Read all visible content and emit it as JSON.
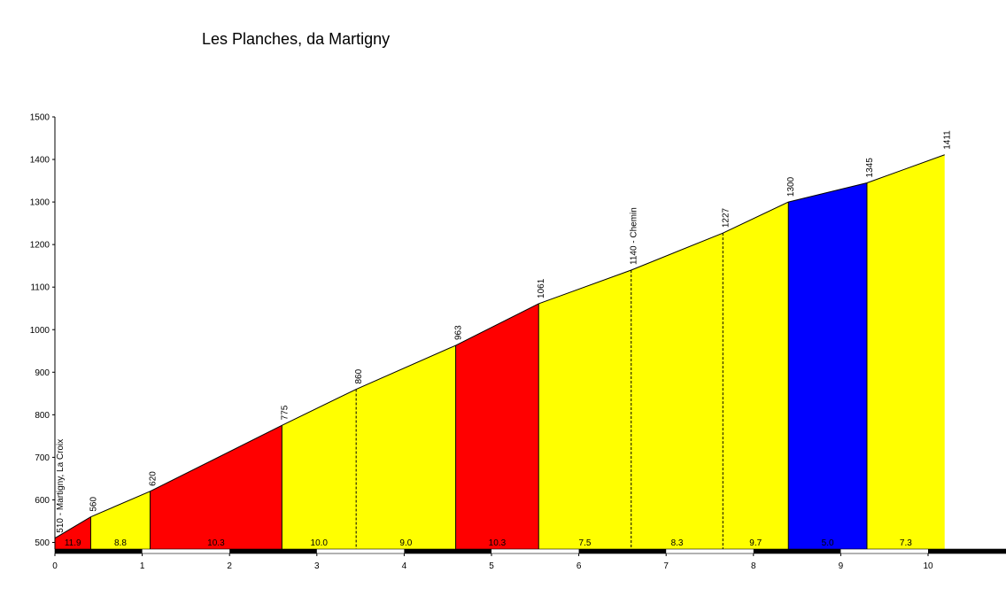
{
  "chart_data": {
    "type": "area",
    "title": "Les Planches, da Martigny",
    "xlabel": "",
    "ylabel": "",
    "xlim": [
      0,
      10.19
    ],
    "ylim": [
      480,
      1500
    ],
    "x_ticks": [
      0,
      1,
      2,
      3,
      4,
      5,
      6,
      7,
      8,
      9,
      10
    ],
    "y_ticks": [
      500,
      600,
      700,
      800,
      900,
      1000,
      1100,
      1200,
      1300,
      1400,
      1500
    ],
    "points": [
      {
        "x": 0.0,
        "y": 510,
        "label": "510 - Martigny, La Croix"
      },
      {
        "x": 0.41,
        "y": 560,
        "label": "560"
      },
      {
        "x": 1.09,
        "y": 620,
        "label": "620"
      },
      {
        "x": 2.6,
        "y": 775,
        "label": "775"
      },
      {
        "x": 3.45,
        "y": 860,
        "label": "860"
      },
      {
        "x": 4.59,
        "y": 963,
        "label": "963"
      },
      {
        "x": 5.54,
        "y": 1061,
        "label": "1061"
      },
      {
        "x": 6.6,
        "y": 1140,
        "label": "1140 - Chemin"
      },
      {
        "x": 7.65,
        "y": 1227,
        "label": "1227"
      },
      {
        "x": 8.4,
        "y": 1300,
        "label": "1300"
      },
      {
        "x": 9.3,
        "y": 1345,
        "label": "1345"
      },
      {
        "x": 10.19,
        "y": 1411,
        "label": "1411"
      }
    ],
    "segments": [
      {
        "gradient": "11.9",
        "color": "#ff0000"
      },
      {
        "gradient": "8.8",
        "color": "#ffff00"
      },
      {
        "gradient": "10.3",
        "color": "#ff0000"
      },
      {
        "gradient": "10.0",
        "color": "#ffff00"
      },
      {
        "gradient": "9.0",
        "color": "#ffff00"
      },
      {
        "gradient": "10.3",
        "color": "#ff0000"
      },
      {
        "gradient": "7.5",
        "color": "#ffff00"
      },
      {
        "gradient": "8.3",
        "color": "#ffff00"
      },
      {
        "gradient": "9.7",
        "color": "#ffff00"
      },
      {
        "gradient": "5.0",
        "color": "#0000ff"
      },
      {
        "gradient": "7.3",
        "color": "#ffff00"
      }
    ],
    "grid": false
  }
}
